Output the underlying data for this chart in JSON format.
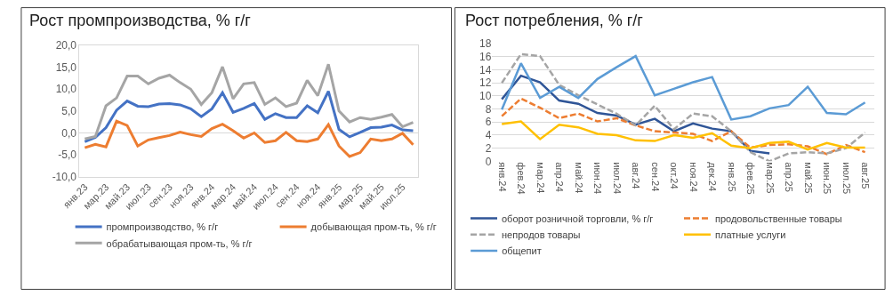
{
  "chart_data": [
    {
      "type": "line",
      "title": "Рост промпроизводства, % г/г",
      "legend": "bottom",
      "categories": [
        "янв.23",
        null,
        "мар.23",
        null,
        "май.23",
        null,
        "июл.23",
        null,
        "сен.23",
        null,
        "ноя.23",
        null,
        "янв.24",
        null,
        "мар.24",
        null,
        "май.24",
        null,
        "июл.24",
        null,
        "сен.24",
        null,
        "ноя.24",
        null,
        "янв.25",
        null,
        "мар.25",
        null,
        "май.25",
        null,
        "июл.25",
        null
      ],
      "ylim": [
        -10,
        20
      ],
      "yticks": [
        {
          "value": -10,
          "label": "-10,0"
        },
        {
          "value": -5,
          "label": "-5,0"
        },
        {
          "value": 0,
          "label": "0,0"
        },
        {
          "value": 5,
          "label": "5,0"
        },
        {
          "value": 10,
          "label": "10,0"
        },
        {
          "value": 15,
          "label": "15,0"
        },
        {
          "value": 20,
          "label": "20,0"
        }
      ],
      "series": [
        {
          "name": "промпроизводство, % г/г",
          "color": "#4472c4",
          "values": [
            -2.0,
            -1.0,
            1.2,
            5.2,
            7.3,
            6.1,
            6.0,
            6.6,
            6.7,
            6.4,
            5.5,
            3.7,
            5.5,
            9.2,
            4.7,
            5.6,
            6.7,
            3.1,
            4.4,
            3.5,
            3.5,
            6.2,
            4.6,
            9.5,
            0.8,
            -0.9,
            0.1,
            1.2,
            1.3,
            1.8,
            0.7,
            0.5
          ]
        },
        {
          "name": "добывающая пром-ть, % г/г",
          "color": "#ed7d31",
          "values": [
            -3.4,
            -2.6,
            -3.2,
            2.7,
            1.7,
            -3.0,
            -1.6,
            -1.1,
            -0.6,
            0.2,
            -0.4,
            -0.8,
            1.0,
            2.0,
            0.5,
            -1.2,
            0.0,
            -2.2,
            -1.8,
            0.1,
            -1.8,
            -2.0,
            -1.4,
            1.9,
            -3.0,
            -5.4,
            -4.5,
            -1.4,
            -1.8,
            -1.4,
            -0.1,
            -2.7
          ]
        },
        {
          "name": "обрабатывающая пром-ть, % г/г",
          "color": "#a5a5a5",
          "values": [
            -1.4,
            -0.8,
            6.2,
            8.0,
            13.0,
            13.0,
            11.2,
            12.5,
            13.2,
            11.5,
            10.0,
            6.5,
            9.2,
            15.1,
            7.8,
            11.2,
            11.5,
            6.5,
            8.0,
            6.0,
            6.8,
            12.0,
            8.5,
            15.7,
            5.0,
            2.5,
            3.5,
            3.1,
            3.6,
            4.2,
            1.4,
            2.4
          ]
        }
      ]
    },
    {
      "type": "line",
      "title": "Рост потребления, % г/г",
      "legend": "bottom",
      "grid": "y",
      "categories": [
        "янв.24",
        "фев.24",
        "мар.24",
        "апр.24",
        "май.24",
        "июн.24",
        "июл.24",
        "авг.24",
        "сен.24",
        "окт.24",
        "ноя.24",
        "дек.24",
        "янв.25",
        "фев.25",
        "мар.25",
        "апр.25",
        "май.25",
        "июн.25",
        "июл.25",
        "авг.25"
      ],
      "ylim": [
        0,
        18
      ],
      "yticks": [
        0,
        2,
        4,
        6,
        8,
        10,
        12,
        14,
        16,
        18
      ],
      "series": [
        {
          "name": "оборот розничной торговли, % г/г",
          "color": "#2f5597",
          "values": [
            9.5,
            13.1,
            12.1,
            9.3,
            8.8,
            7.4,
            7.0,
            5.6,
            6.5,
            4.6,
            5.8,
            5.0,
            4.6,
            1.6,
            1.2,
            null,
            null,
            null,
            null,
            null
          ]
        },
        {
          "name": "продовольственные товары",
          "color": "#ed7d31",
          "line_style": "dashed",
          "values": [
            6.9,
            9.6,
            8.2,
            6.6,
            7.3,
            6.1,
            6.6,
            5.5,
            4.6,
            4.4,
            4.2,
            3.1,
            4.6,
            2.1,
            2.5,
            2.6,
            2.3,
            1.1,
            2.5,
            1.4
          ]
        },
        {
          "name": "непродов товары",
          "color": "#a5a5a5",
          "line_style": "dashed",
          "values": [
            12.0,
            16.4,
            16.1,
            11.7,
            10.1,
            8.7,
            7.3,
            5.5,
            8.5,
            4.9,
            7.3,
            6.9,
            4.6,
            1.4,
            0.0,
            1.2,
            1.4,
            1.2,
            2.0,
            4.4
          ]
        },
        {
          "name": "платные услуги",
          "color": "#ffc000",
          "values": [
            5.7,
            6.1,
            3.4,
            5.6,
            5.2,
            4.2,
            4.0,
            3.2,
            3.1,
            4.0,
            3.6,
            4.3,
            2.4,
            2.0,
            2.8,
            3.0,
            1.8,
            2.8,
            2.1,
            2.1
          ]
        },
        {
          "name": "общепит",
          "color": "#5b9bd5",
          "values": [
            7.9,
            15.0,
            9.7,
            11.4,
            9.7,
            12.6,
            14.4,
            16.1,
            10.1,
            11.1,
            12.1,
            12.9,
            6.4,
            6.9,
            8.1,
            8.6,
            11.4,
            7.4,
            7.2,
            9.0
          ]
        }
      ]
    }
  ]
}
